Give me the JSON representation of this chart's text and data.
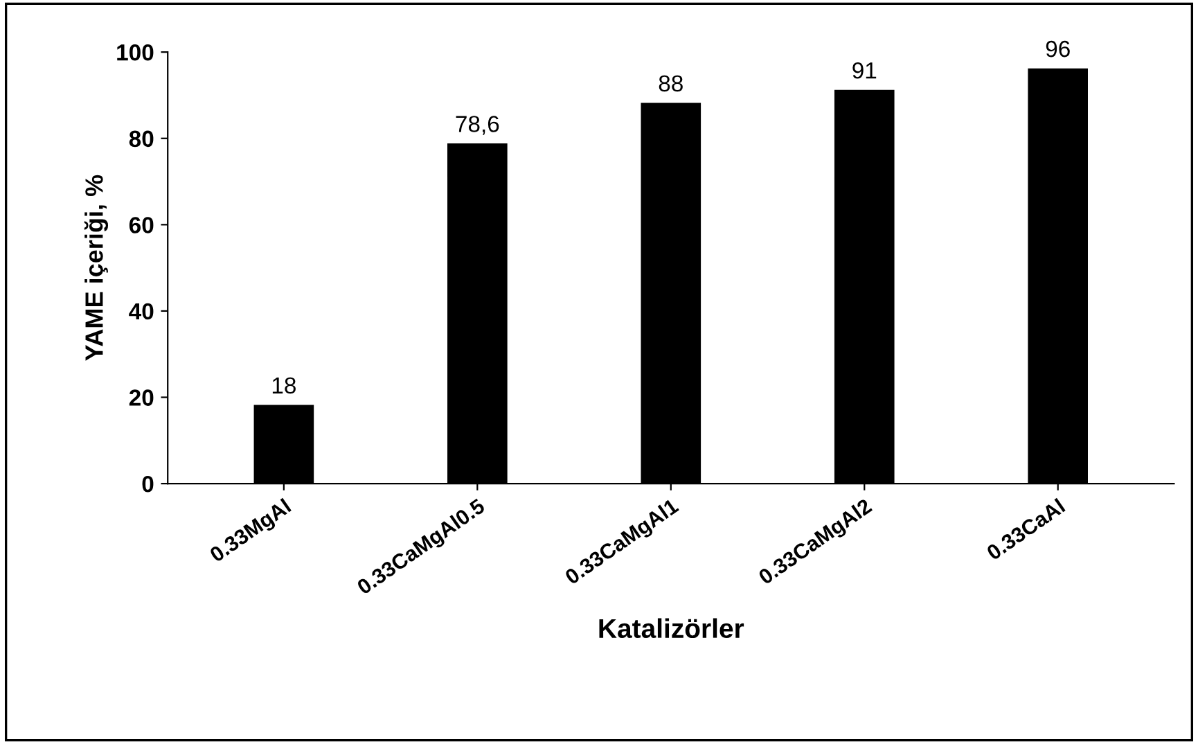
{
  "chart_data": {
    "type": "bar",
    "xlabel": "Katalizörler",
    "ylabel": "YAME içeriği, %",
    "categories": [
      "0.33MgAl",
      "0.33CaMgAl0.5",
      "0.33CaMgAl1",
      "0.33CaMgAl2",
      "0.33CaAl"
    ],
    "values": [
      18,
      78.6,
      88,
      91,
      96
    ],
    "value_labels": [
      "18",
      "78,6",
      "88",
      "91",
      "96"
    ],
    "color": "#000000",
    "ylim": [
      0,
      100
    ],
    "yticks": [
      0,
      20,
      40,
      60,
      80,
      100
    ],
    "grid": false,
    "legend": false
  }
}
